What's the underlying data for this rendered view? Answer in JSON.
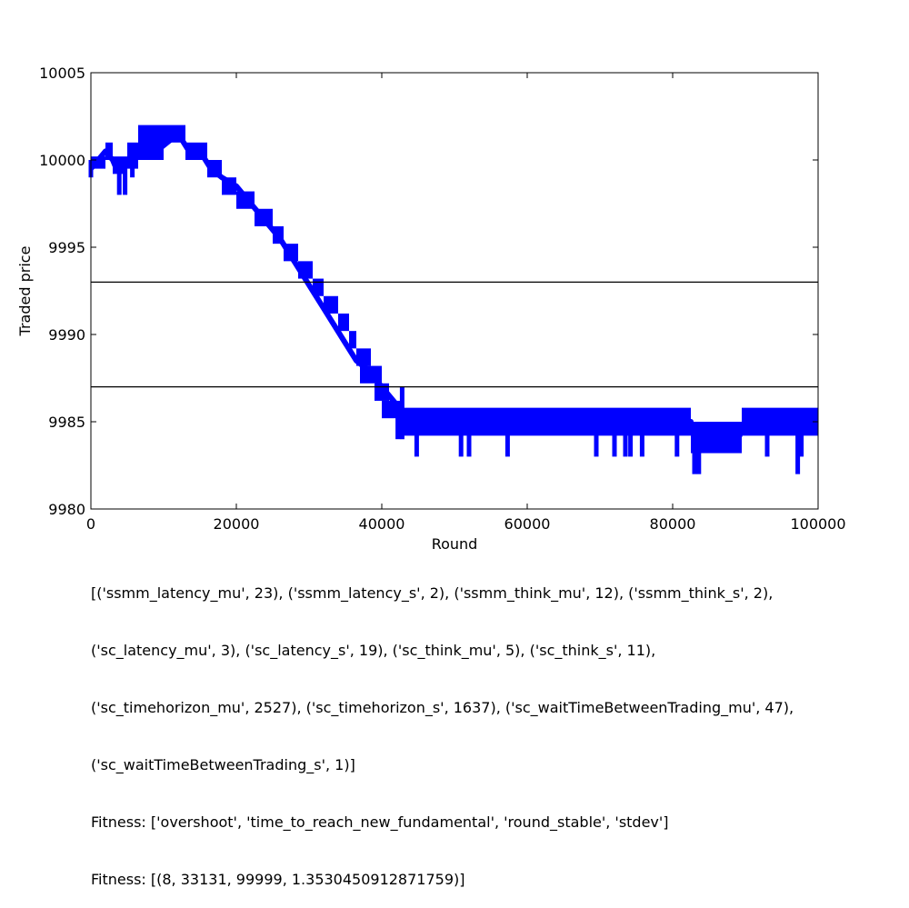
{
  "chart_data": {
    "type": "line",
    "xlabel": "Round",
    "ylabel": "Traded price",
    "xlim": [
      0,
      100000
    ],
    "ylim": [
      9980,
      10005
    ],
    "x_ticks": [
      "0",
      "20000",
      "40000",
      "60000",
      "80000",
      "100000"
    ],
    "y_ticks": [
      "9980",
      "9985",
      "9990",
      "9995",
      "10000",
      "10005"
    ],
    "series_color": "#0000ff",
    "reference_line_color": "#000000",
    "reference_lines": [
      9993,
      9987
    ],
    "series": [
      {
        "points": [
          [
            0,
            9999.5
          ],
          [
            1000,
            10000
          ],
          [
            2000,
            10000.5
          ],
          [
            3000,
            10000
          ],
          [
            3500,
            9999.5
          ],
          [
            5000,
            10000
          ],
          [
            6500,
            10000.5
          ],
          [
            7500,
            10001.5
          ],
          [
            9000,
            10000.5
          ],
          [
            10500,
            10001
          ],
          [
            12000,
            10001.5
          ],
          [
            13500,
            10000.5
          ],
          [
            15000,
            10000.5
          ],
          [
            16500,
            9999.5
          ],
          [
            18000,
            9999
          ],
          [
            20000,
            9998.5
          ],
          [
            22000,
            9997.5
          ],
          [
            24000,
            9996.5
          ],
          [
            26000,
            9995.5
          ],
          [
            27500,
            9994.5
          ],
          [
            29000,
            9993.5
          ],
          [
            30500,
            9992.5
          ],
          [
            32000,
            9991.5
          ],
          [
            33500,
            9990.5
          ],
          [
            35000,
            9989.5
          ],
          [
            36500,
            9988.5
          ],
          [
            38000,
            9988
          ],
          [
            39000,
            9987.5
          ],
          [
            40000,
            9987
          ],
          [
            41000,
            9986.5
          ],
          [
            42000,
            9986
          ],
          [
            43000,
            9985.5
          ],
          [
            45000,
            9985
          ],
          [
            50000,
            9985
          ],
          [
            55000,
            9985
          ],
          [
            60000,
            9985
          ],
          [
            67000,
            9985
          ],
          [
            70000,
            9985
          ],
          [
            75000,
            9985
          ],
          [
            80000,
            9985
          ],
          [
            82500,
            9985
          ],
          [
            83000,
            9984
          ],
          [
            86000,
            9984
          ],
          [
            89000,
            9984
          ],
          [
            90000,
            9985
          ],
          [
            93000,
            9985
          ],
          [
            97000,
            9985
          ],
          [
            100000,
            9985
          ]
        ],
        "bands": [
          [
            0,
            2000,
            9999.5,
            10000.2
          ],
          [
            2000,
            3000,
            10000,
            10001
          ],
          [
            3000,
            5000,
            9999.2,
            10000.2
          ],
          [
            5000,
            6500,
            9999.5,
            10001
          ],
          [
            6500,
            10000,
            10000,
            10002
          ],
          [
            10000,
            13000,
            10001,
            10002
          ],
          [
            13000,
            16000,
            10000,
            10001
          ],
          [
            16000,
            18000,
            9999,
            10000
          ],
          [
            18000,
            20000,
            9998,
            9999
          ],
          [
            20000,
            22500,
            9997.2,
            9998.2
          ],
          [
            22500,
            25000,
            9996.2,
            9997.2
          ],
          [
            25000,
            26500,
            9995.2,
            9996.2
          ],
          [
            26500,
            28500,
            9994.2,
            9995.2
          ],
          [
            28500,
            30500,
            9993.2,
            9994.2
          ],
          [
            30500,
            32000,
            9992.2,
            9993.2
          ],
          [
            32000,
            34000,
            9991.2,
            9992.2
          ],
          [
            34000,
            35500,
            9990.2,
            9991.2
          ],
          [
            35500,
            36500,
            9989.2,
            9990.2
          ],
          [
            36500,
            38500,
            9988.2,
            9989.2
          ],
          [
            37000,
            40000,
            9987.2,
            9988.2
          ],
          [
            39000,
            41000,
            9986.2,
            9987.2
          ],
          [
            40000,
            42500,
            9985.2,
            9986.2
          ],
          [
            42500,
            67000,
            9984.2,
            9985.8
          ],
          [
            67000,
            82500,
            9984.2,
            9985.8
          ],
          [
            82500,
            89500,
            9983.2,
            9985
          ],
          [
            89500,
            100000,
            9984.2,
            9985.8
          ]
        ],
        "spikes": [
          [
            0,
            9999,
            10000
          ],
          [
            3900,
            9998,
            10000
          ],
          [
            4700,
            9998,
            10000
          ],
          [
            5700,
            9999,
            10000
          ],
          [
            42200,
            9984,
            9986
          ],
          [
            42800,
            9984,
            9987
          ],
          [
            44800,
            9983,
            9985
          ],
          [
            50900,
            9983,
            9985
          ],
          [
            52000,
            9983,
            9985
          ],
          [
            57300,
            9983,
            9985
          ],
          [
            69500,
            9983,
            9985
          ],
          [
            72000,
            9983,
            9985
          ],
          [
            73500,
            9983,
            9985
          ],
          [
            74200,
            9983,
            9985
          ],
          [
            75800,
            9983,
            9985
          ],
          [
            80600,
            9983,
            9985
          ],
          [
            83000,
            9982,
            9985
          ],
          [
            83600,
            9982,
            9985
          ],
          [
            93000,
            9983,
            9985
          ],
          [
            97200,
            9982,
            9985
          ],
          [
            97700,
            9983,
            9985
          ]
        ]
      }
    ]
  },
  "caption": {
    "lines": [
      "[('ssmm_latency_mu', 23), ('ssmm_latency_s', 2), ('ssmm_think_mu', 12), ('ssmm_think_s', 2),",
      "('sc_latency_mu', 3), ('sc_latency_s', 19), ('sc_think_mu', 5), ('sc_think_s', 11),",
      "('sc_timehorizon_mu', 2527), ('sc_timehorizon_s', 1637), ('sc_waitTimeBetweenTrading_mu', 47),",
      "('sc_waitTimeBetweenTrading_s', 1)]",
      "Fitness: ['overshoot', 'time_to_reach_new_fundamental', 'round_stable', 'stdev']",
      "Fitness: [(8, 33131, 99999, 1.3530450912871759)]"
    ]
  }
}
